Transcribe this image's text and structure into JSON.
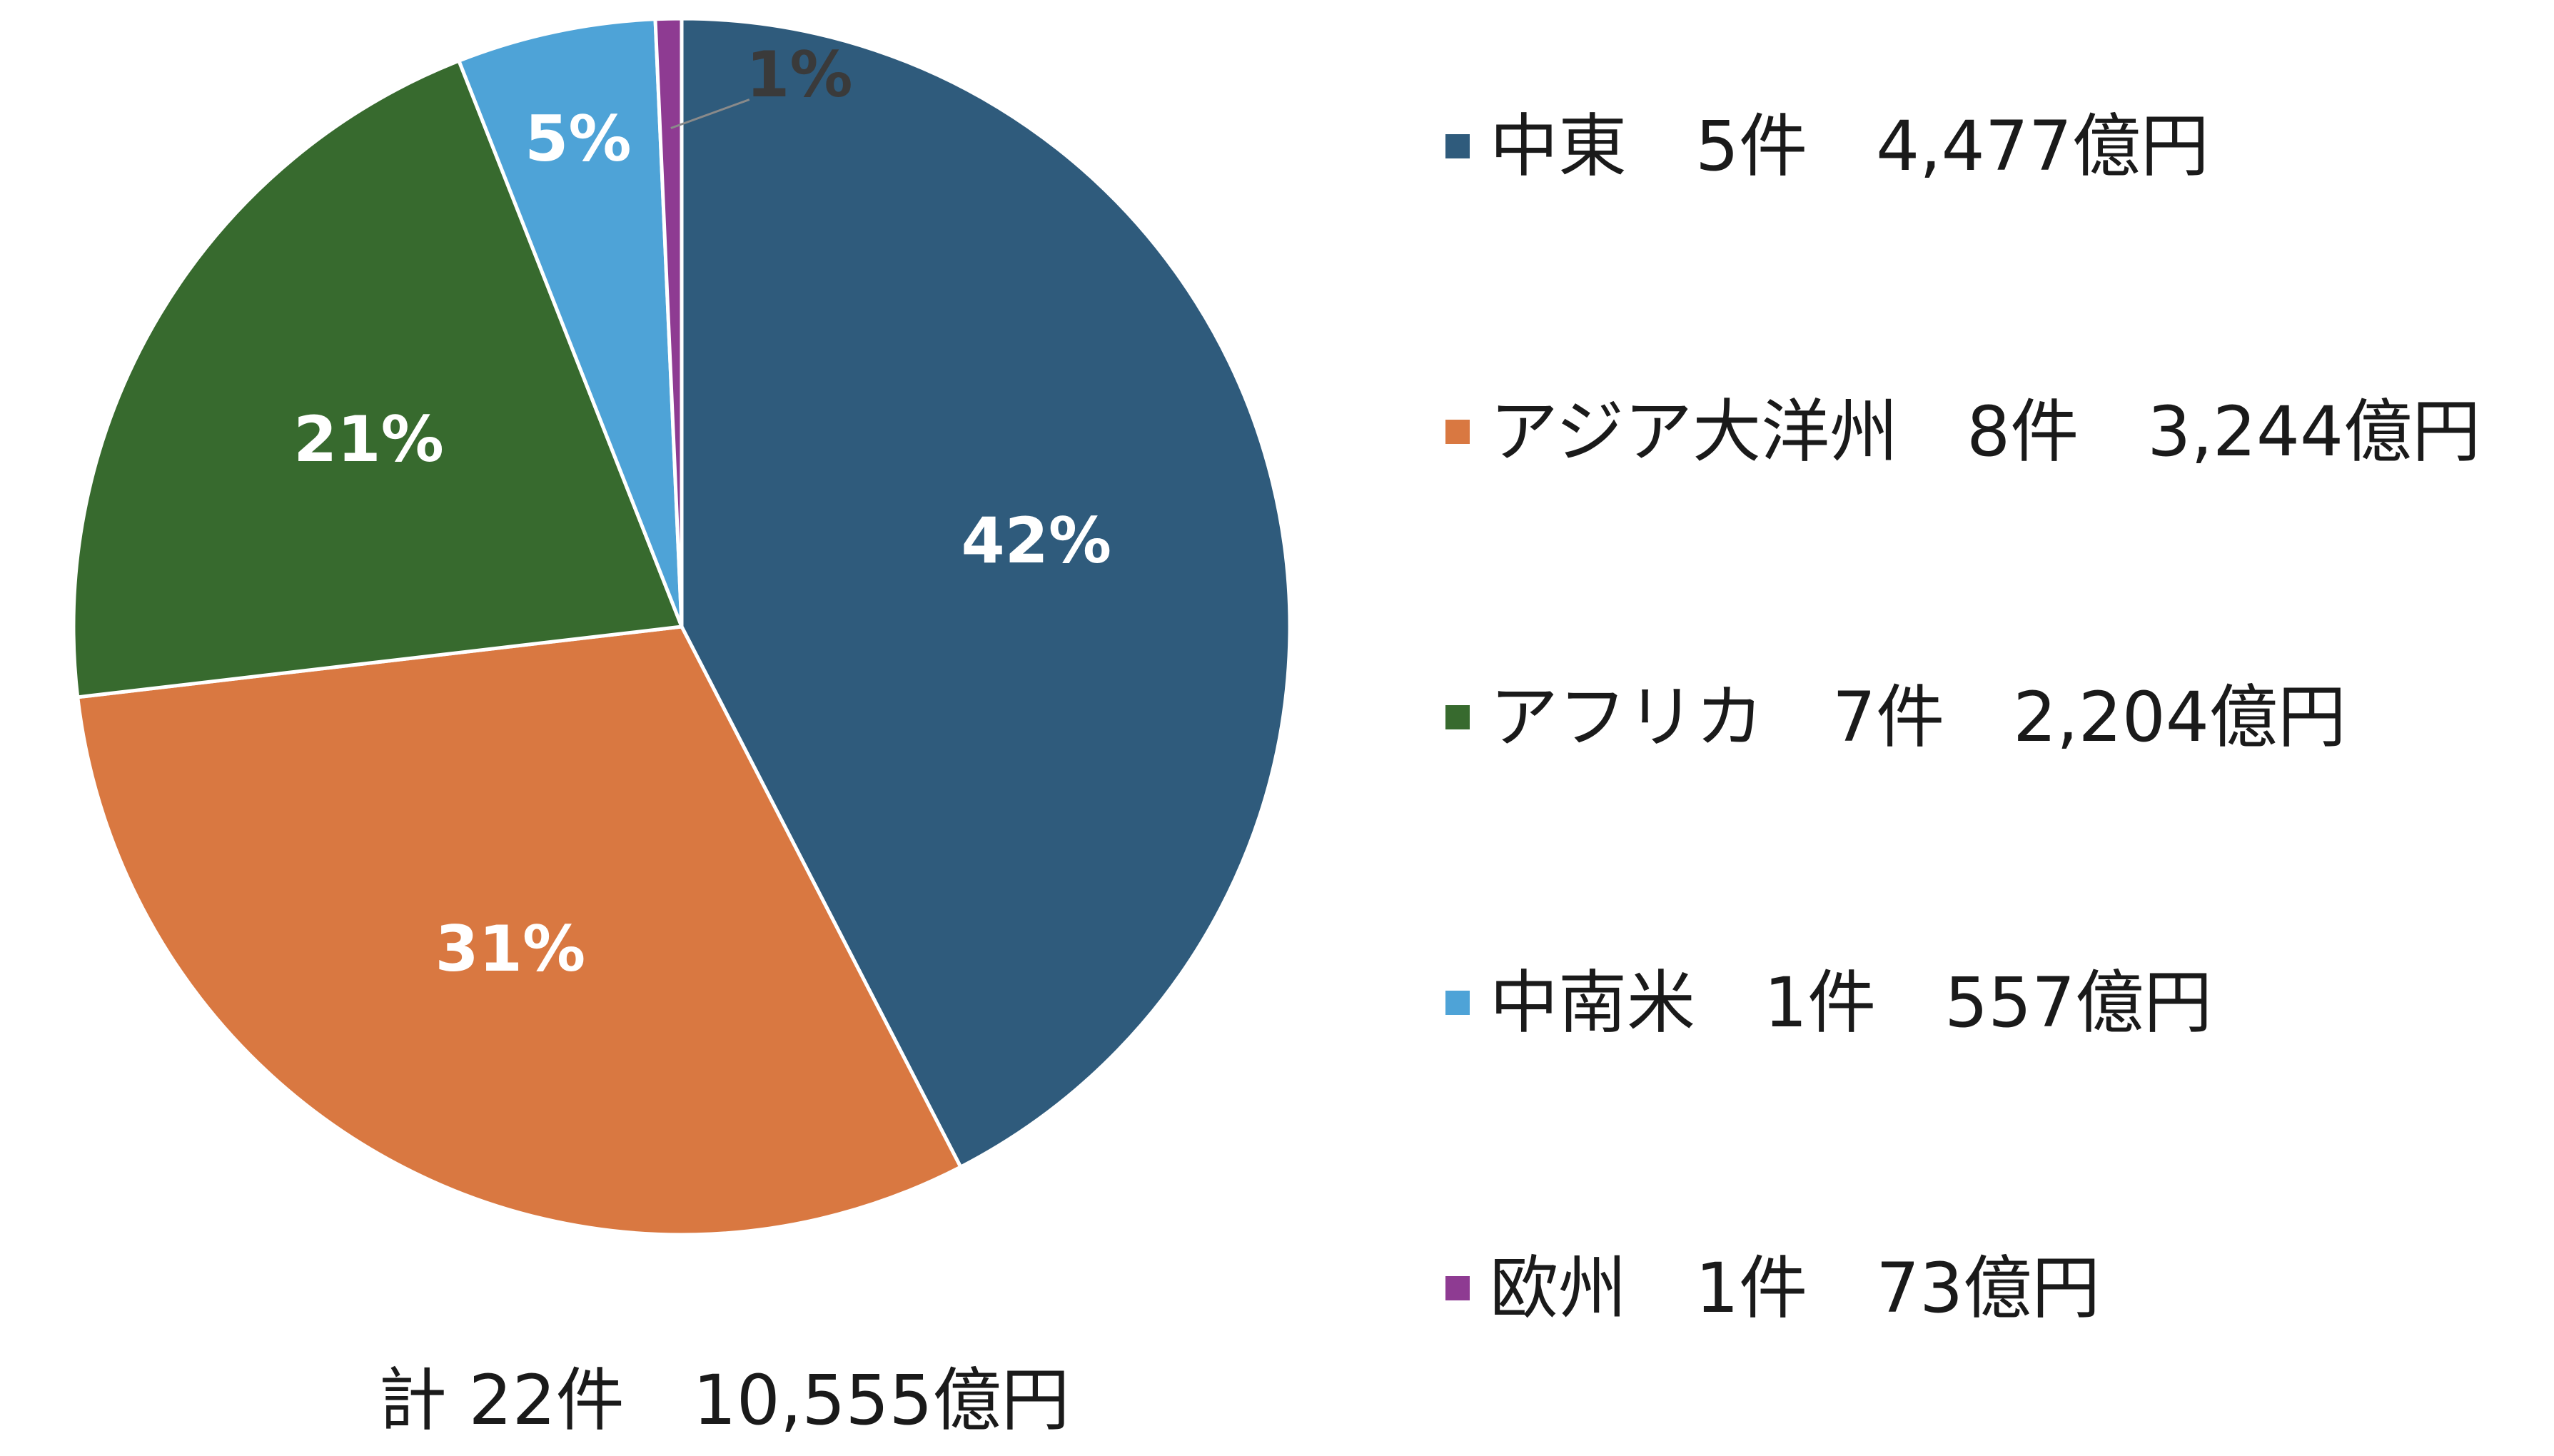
{
  "chart_data": {
    "type": "pie",
    "start": "12 o'clock",
    "direction": "clockwise",
    "slices": [
      {
        "name": "中東",
        "count": "5件",
        "amount": "4,477億円",
        "value": 4477,
        "percent_label": "42%",
        "color": "#2f5b7c"
      },
      {
        "name": "アジア大洋州",
        "count": "8件",
        "amount": "3,244億円",
        "value": 3244,
        "percent_label": "31%",
        "color": "#d97841"
      },
      {
        "name": "アフリカ",
        "count": "7件",
        "amount": "2,204億円",
        "value": 2204,
        "percent_label": "21%",
        "color": "#376a2e"
      },
      {
        "name": "中南米",
        "count": "1件",
        "amount": "557億円",
        "value": 557,
        "percent_label": "5%",
        "color": "#4ea3d7"
      },
      {
        "name": "欧州",
        "count": "1件",
        "amount": "73億円",
        "value": 73,
        "percent_label": "1%",
        "color": "#8e3b92"
      }
    ],
    "total": {
      "prefix": "計",
      "count": "22件",
      "amount": "10,555億円"
    },
    "legend_position": "right"
  }
}
